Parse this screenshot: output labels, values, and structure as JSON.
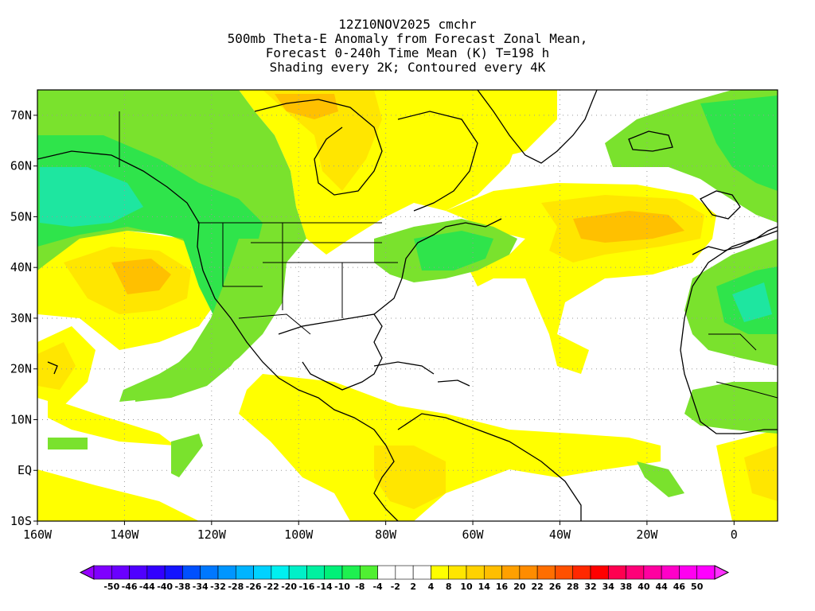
{
  "title": {
    "line1": "12Z10NOV2025 cmchr",
    "line2": "500mb Theta-E Anomaly from Forecast Zonal Mean,",
    "line3": "Forecast 0-240h Time Mean (K) T=198 h",
    "line4": "Shading every 2K; Contoured every 4K"
  },
  "map": {
    "lon_range": [
      -160,
      10
    ],
    "lat_range": [
      -10,
      75
    ],
    "lon_ticks": [
      {
        "lon": -160,
        "label": "160W"
      },
      {
        "lon": -140,
        "label": "140W"
      },
      {
        "lon": -120,
        "label": "120W"
      },
      {
        "lon": -100,
        "label": "100W"
      },
      {
        "lon": -80,
        "label": "80W"
      },
      {
        "lon": -60,
        "label": "60W"
      },
      {
        "lon": -40,
        "label": "40W"
      },
      {
        "lon": -20,
        "label": "20W"
      },
      {
        "lon": 0,
        "label": "0"
      }
    ],
    "lat_ticks": [
      {
        "lat": 70,
        "label": "70N"
      },
      {
        "lat": 60,
        "label": "60N"
      },
      {
        "lat": 50,
        "label": "50N"
      },
      {
        "lat": 40,
        "label": "40N"
      },
      {
        "lat": 30,
        "label": "30N"
      },
      {
        "lat": 20,
        "label": "20N"
      },
      {
        "lat": 10,
        "label": "10N"
      },
      {
        "lat": 0,
        "label": "EQ"
      },
      {
        "lat": -10,
        "label": "10S"
      }
    ],
    "grid_lines": true
  },
  "colorbar": {
    "labels": [
      "-50",
      "-46",
      "-44",
      "-40",
      "-38",
      "-34",
      "-32",
      "-28",
      "-26",
      "-22",
      "-20",
      "-16",
      "-14",
      "-10",
      "-8",
      "-4",
      "-2",
      "2",
      "4",
      "8",
      "10",
      "14",
      "16",
      "20",
      "22",
      "26",
      "28",
      "32",
      "34",
      "38",
      "40",
      "44",
      "46",
      "50"
    ],
    "colors": [
      "#7f00ff",
      "#6a00ff",
      "#4f00ff",
      "#3200ff",
      "#1414ff",
      "#0050ff",
      "#0078ff",
      "#0096ff",
      "#00b4ff",
      "#00d2ff",
      "#00f0f0",
      "#00f0c8",
      "#00f0a0",
      "#00f078",
      "#1ef050",
      "#50f032",
      "#ffffff",
      "#ffffff",
      "#ffffff",
      "#ffff00",
      "#ffe600",
      "#ffd200",
      "#ffbe00",
      "#ffa000",
      "#ff8c00",
      "#ff6e00",
      "#ff5000",
      "#ff2800",
      "#ff0000",
      "#ff0050",
      "#ff0078",
      "#ff00a0",
      "#ff00c8",
      "#ff00f0",
      "#ff00ff"
    ],
    "left_arrow_color": "#9600ff",
    "right_arrow_color": "#ff32ff"
  },
  "anomaly_colors": {
    "positive_low": "#ffff00",
    "positive_mid": "#ffe600",
    "positive_high": "#ffc000",
    "negative_low": "#7ae22d",
    "negative_mid": "#2fe44b",
    "negative_high": "#1ee6a0"
  }
}
